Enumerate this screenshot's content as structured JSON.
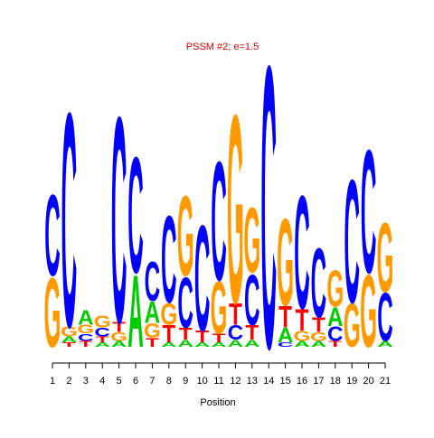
{
  "chart_data": {
    "type": "logo",
    "title": "PSSM #2; e=1.5",
    "x_label": "Position",
    "x": [
      1,
      2,
      3,
      4,
      5,
      6,
      7,
      8,
      9,
      10,
      11,
      12,
      13,
      14,
      15,
      16,
      17,
      18,
      19,
      20,
      21
    ],
    "xticks": [
      1,
      2,
      3,
      4,
      5,
      6,
      7,
      8,
      9,
      10,
      11,
      12,
      13,
      14,
      15,
      16,
      17,
      18,
      19,
      20,
      21
    ],
    "xlim": [
      0.5,
      21.5
    ],
    "ylim": [
      0,
      2
    ],
    "series": [
      {
        "name": "A",
        "color": "#00cc00",
        "values": [
          0,
          0.04,
          0.1,
          0.03,
          0.04,
          0.5,
          0.15,
          0.03,
          0.05,
          0.03,
          0.03,
          0.05,
          0.05,
          0,
          0.1,
          0.04,
          0.04,
          0.13,
          0,
          0,
          0.04
        ]
      },
      {
        "name": "C",
        "color": "#0000ff",
        "values": [
          0.56,
          1.48,
          0.05,
          0.06,
          1.42,
          0.8,
          0.27,
          0.6,
          0.35,
          0.73,
          0.82,
          0.1,
          0.35,
          1.95,
          0.03,
          0.78,
          0.48,
          0.1,
          0.85,
          0.85,
          0.33
        ]
      },
      {
        "name": "G",
        "color": "#ff9900",
        "values": [
          0.48,
          0.07,
          0.06,
          0.08,
          0.06,
          0,
          0.1,
          0.15,
          0.55,
          0,
          0.36,
          1.3,
          0.45,
          0,
          0.6,
          0.07,
          0.06,
          0.25,
          0.3,
          0.5,
          0.48
        ]
      },
      {
        "name": "T",
        "color": "#ff0000",
        "values": [
          0,
          0.03,
          0.04,
          0.04,
          0.07,
          0,
          0.06,
          0.12,
          0.08,
          0.08,
          0.06,
          0.15,
          0.1,
          0,
          0.15,
          0.15,
          0.1,
          0.04,
          0,
          0,
          0
        ]
      }
    ]
  }
}
